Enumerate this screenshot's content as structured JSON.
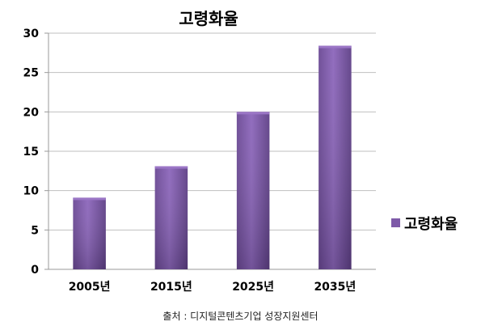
{
  "chart_data": {
    "type": "bar",
    "title": "고령화율",
    "categories": [
      "2005년",
      "2015년",
      "2025년",
      "2035년"
    ],
    "series": [
      {
        "name": "고령화율",
        "values": [
          9.1,
          13.1,
          20.0,
          28.4
        ]
      }
    ],
    "ylim": [
      0,
      30
    ],
    "yticks": [
      0,
      5,
      10,
      15,
      20,
      25,
      30
    ],
    "grid": true,
    "legend_position": "right",
    "colors": {
      "bar": "#7e5aa8",
      "bar_light": "#9b76c6",
      "bar_dark": "#5a3c80",
      "grid": "#bfbfbf",
      "axis": "#999999"
    }
  },
  "source_note": "출처 : 디지털콘텐츠기업 성장지원센터"
}
